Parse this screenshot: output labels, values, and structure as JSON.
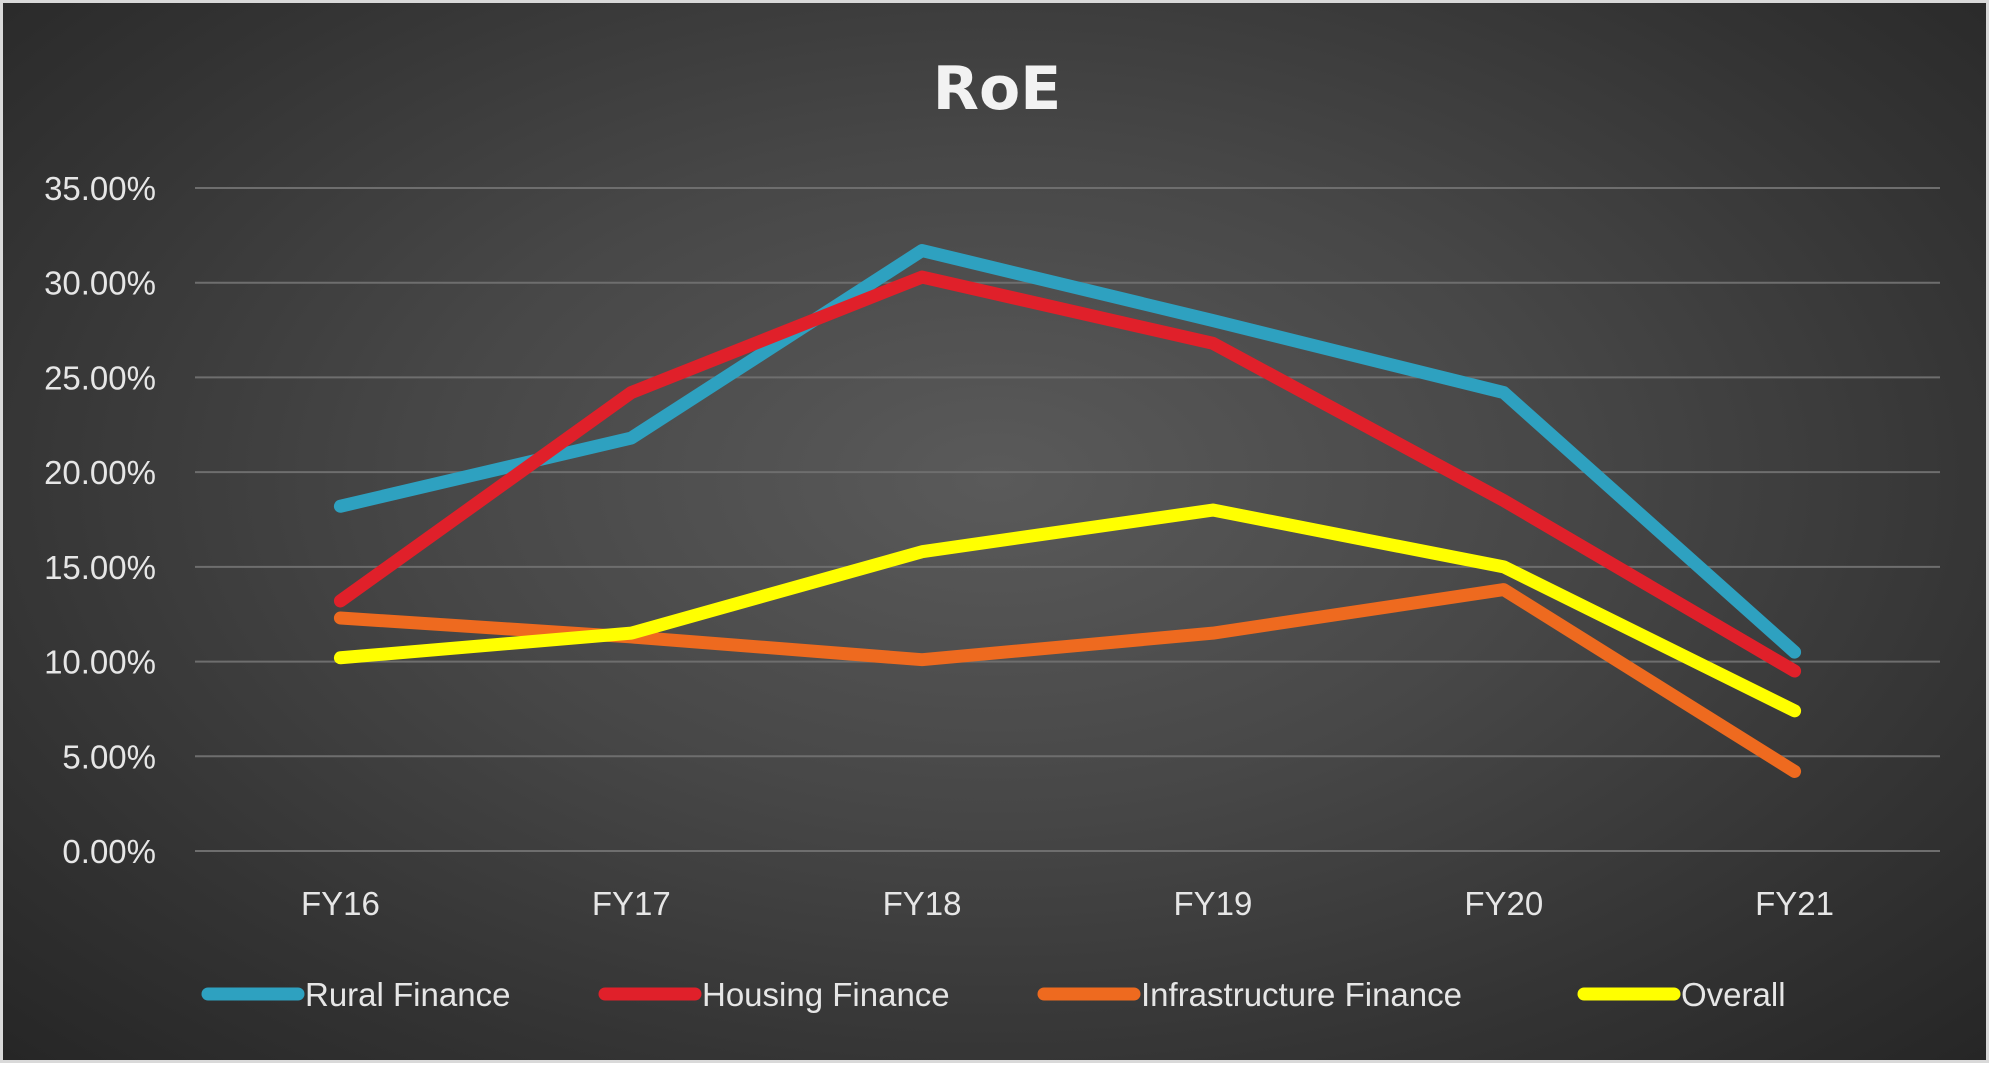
{
  "chart_data": {
    "type": "line",
    "title": "RoE",
    "xlabel": "",
    "ylabel": "",
    "categories": [
      "FY16",
      "FY17",
      "FY18",
      "FY19",
      "FY20",
      "FY21"
    ],
    "ylim": [
      0,
      35
    ],
    "yticks": [
      0,
      5,
      10,
      15,
      20,
      25,
      30,
      35
    ],
    "ytick_labels": [
      "0.00%",
      "5.00%",
      "10.00%",
      "15.00%",
      "20.00%",
      "25.00%",
      "30.00%",
      "35.00%"
    ],
    "grid": true,
    "legend_position": "bottom",
    "series": [
      {
        "name": "Rural Finance",
        "color": "#2ea1c0",
        "values": [
          18.2,
          21.8,
          31.7,
          28.0,
          24.2,
          10.5
        ]
      },
      {
        "name": "Housing Finance",
        "color": "#e0202a",
        "values": [
          13.2,
          24.2,
          30.3,
          26.8,
          18.5,
          9.5
        ]
      },
      {
        "name": "Infrastructure Finance",
        "color": "#ee6a1f",
        "values": [
          12.3,
          11.3,
          10.1,
          11.5,
          13.8,
          4.2
        ]
      },
      {
        "name": "Overall",
        "color": "#ffff00",
        "values": [
          10.2,
          11.5,
          15.8,
          18.0,
          15.0,
          7.4
        ]
      }
    ]
  }
}
